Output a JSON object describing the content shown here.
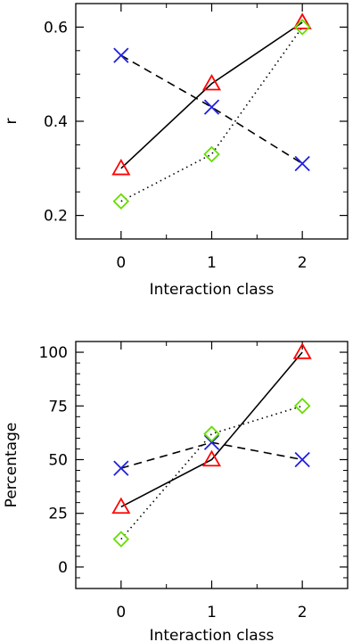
{
  "chart_data": [
    {
      "type": "line",
      "xlabel": "Interaction class",
      "ylabel": "r",
      "xlim": [
        -0.5,
        2.5
      ],
      "ylim": [
        0.15,
        0.65
      ],
      "xticks": [
        0,
        1,
        2
      ],
      "yticks": [
        0.2,
        0.4,
        0.6
      ],
      "ytick_labels": [
        "0.2",
        "0.4",
        "0.6"
      ],
      "x": [
        0,
        1,
        2
      ],
      "series": [
        {
          "marker": "triangle",
          "line": "solid",
          "color": "#ff0000",
          "values": [
            0.3,
            0.48,
            0.61
          ]
        },
        {
          "marker": "cross",
          "line": "dashed",
          "color": "#2020e0",
          "values": [
            0.54,
            0.43,
            0.31
          ]
        },
        {
          "marker": "diamond",
          "line": "dotted",
          "color": "#66dd00",
          "values": [
            0.23,
            0.33,
            0.6
          ]
        }
      ]
    },
    {
      "type": "line",
      "xlabel": "Interaction class",
      "ylabel": "Percentage",
      "xlim": [
        -0.5,
        2.5
      ],
      "ylim": [
        -10,
        105
      ],
      "xticks": [
        0,
        1,
        2
      ],
      "yticks": [
        0,
        25,
        50,
        75,
        100
      ],
      "ytick_labels": [
        "0",
        "25",
        "50",
        "75",
        "100"
      ],
      "x": [
        0,
        1,
        2
      ],
      "series": [
        {
          "marker": "triangle",
          "line": "solid",
          "color": "#ff0000",
          "values": [
            28,
            50,
            100
          ]
        },
        {
          "marker": "cross",
          "line": "dashed",
          "color": "#2020e0",
          "values": [
            46,
            58,
            50
          ]
        },
        {
          "marker": "diamond",
          "line": "dotted",
          "color": "#66dd00",
          "values": [
            13,
            62,
            75
          ]
        }
      ]
    }
  ]
}
